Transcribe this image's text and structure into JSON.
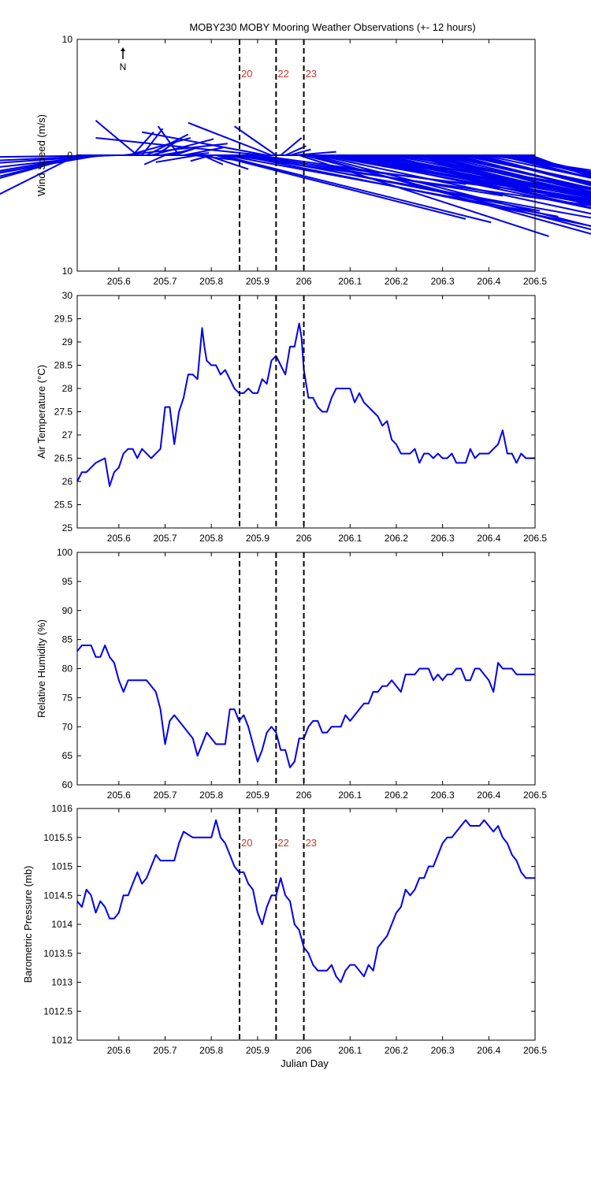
{
  "page_title": "MOBY230 MOBY Mooring Weather Observations (+- 12 hours)",
  "north_label": "N",
  "colors": {
    "series": "#0000ee",
    "marker_line": "#000000",
    "marker_label": "#c0392b",
    "axes": "#000000"
  },
  "markers": {
    "x": [
      205.861,
      205.94,
      206.0
    ],
    "labels": [
      "20",
      "22",
      "23"
    ]
  },
  "chart_data": [
    {
      "type": "line",
      "name": "wind",
      "subtype": "wind-stick",
      "ylabel": "Wind Speed (m/s)",
      "xlabel": "",
      "xlim": [
        205.51,
        206.5
      ],
      "ylim": [
        -10,
        10
      ],
      "ytick_values": [
        -10,
        0,
        10
      ],
      "ytick_labels": [
        "10",
        "0",
        "10"
      ],
      "xticks": [
        205.6,
        205.7,
        205.8,
        205.9,
        206.0,
        206.1,
        206.2,
        206.3,
        206.4,
        206.5
      ],
      "xtick_labels": [
        "205.6",
        "205.7",
        "205.8",
        "205.9",
        "206",
        "206.1",
        "206.2",
        "206.3",
        "206.4",
        "206.5"
      ],
      "show_marker_labels": true,
      "sticks": {
        "x": [
          205.51,
          205.52,
          205.53,
          205.54,
          205.55,
          205.56,
          205.57,
          205.58,
          205.59,
          205.6,
          205.61,
          205.62,
          205.63,
          205.64,
          205.65,
          205.66,
          205.67,
          205.68,
          205.69,
          205.7,
          205.71,
          205.72,
          205.73,
          205.74,
          205.75,
          205.76,
          205.77,
          205.78,
          205.79,
          205.8,
          205.81,
          205.82,
          205.83,
          205.84,
          205.85,
          205.86,
          205.87,
          205.88,
          205.89,
          205.9,
          205.91,
          205.92,
          205.93,
          205.94,
          205.95,
          205.96,
          205.97,
          205.98,
          205.99,
          206.0,
          206.01,
          206.02,
          206.03,
          206.04,
          206.05,
          206.06,
          206.07,
          206.08,
          206.09,
          206.1,
          206.11,
          206.12,
          206.13,
          206.14,
          206.15,
          206.16,
          206.17,
          206.18,
          206.19,
          206.2,
          206.21,
          206.22,
          206.23,
          206.24,
          206.25,
          206.26,
          206.27,
          206.28,
          206.29,
          206.3,
          206.31,
          206.32,
          206.33,
          206.34,
          206.35,
          206.36,
          206.37,
          206.38,
          206.39,
          206.4,
          206.41,
          206.42,
          206.43,
          206.44,
          206.45,
          206.46,
          206.47,
          206.48,
          206.49
        ],
        "u": [
          -0.5,
          -1.0,
          -1.5,
          -1.8,
          -1.5,
          -1.3,
          -1.5,
          -1.2,
          -1.0,
          -0.8,
          0.5,
          0.3,
          0.1,
          -0.2,
          0.1,
          0.2,
          0.3,
          0.1,
          0.1,
          -0.1,
          0.1,
          0.1,
          -0.1,
          0.2,
          0.1,
          0.2,
          -0.2,
          0.1,
          0.2,
          -0.1,
          1.2,
          1.3,
          1.6,
          1.8,
          1.6,
          1.8,
          1.7,
          1.4,
          1.2,
          1.0,
          -0.8,
          -0.6,
          -0.4,
          -0.2,
          0.1,
          0.1,
          0.1,
          0.2,
          1.2,
          1.4,
          1.5,
          1.7,
          1.9,
          2.0,
          2.0,
          1.8,
          1.6,
          1.9,
          2.0,
          2.0,
          1.8,
          1.6,
          1.8,
          2.0,
          2.0,
          1.9,
          1.7,
          1.6,
          1.8,
          2.0,
          2.0,
          1.8,
          1.5,
          1.7,
          1.9,
          2.0,
          1.8,
          1.6,
          1.8,
          2.0,
          1.9,
          1.7,
          1.6,
          1.8,
          2.0,
          1.8,
          1.6,
          1.5,
          1.7,
          1.9,
          1.8,
          1.6,
          1.5,
          1.7,
          1.8,
          1.6,
          1.5,
          1.3,
          1.0
        ],
        "v": [
          -4.5,
          -5.0,
          -6.5,
          -5.5,
          -5.0,
          -4.0,
          -3.0,
          -1.5,
          -0.8,
          -0.2,
          1.0,
          1.5,
          2.0,
          3.0,
          2.3,
          1.8,
          1.4,
          1.2,
          0.3,
          -0.8,
          0.5,
          0.6,
          2.5,
          0.7,
          0.2,
          -0.4,
          -0.6,
          -0.8,
          -1.2,
          -0.5,
          -5.5,
          -5.8,
          -5.3,
          -4.5,
          -3.5,
          -6.5,
          -5.5,
          -4.8,
          -3.5,
          -2.5,
          1.5,
          2.0,
          2.8,
          2.5,
          1.5,
          0.8,
          0.5,
          0.3,
          -7.0,
          -6.5,
          -7.5,
          -7.8,
          -7.3,
          -6.5,
          -6.2,
          -5.5,
          -6.0,
          -6.4,
          -6.8,
          -6.3,
          -5.5,
          -6.5,
          -6.8,
          -6.9,
          -6.3,
          -6.5,
          -7.0,
          -7.0,
          -6.5,
          -6.0,
          -6.5,
          -7.2,
          -7.5,
          -7.4,
          -7.7,
          -7.8,
          -8.0,
          -7.6,
          -7.9,
          -8.0,
          -7.8,
          -7.5,
          -7.2,
          -6.8,
          -7.7,
          -7.4,
          -7.5,
          -7.0,
          -6.5,
          -5.0,
          -6.0,
          -7.0,
          -6.9,
          -7.2,
          -7.3,
          -6.5,
          -7.0,
          -7.3,
          -6.5
        ]
      }
    },
    {
      "type": "line",
      "name": "airtemp",
      "ylabel": "Air Temperature (°C)",
      "xlabel": "",
      "xlim": [
        205.51,
        206.5
      ],
      "ylim": [
        25,
        30
      ],
      "ytick_values": [
        25,
        25.5,
        26,
        26.5,
        27,
        27.5,
        28,
        28.5,
        29,
        29.5,
        30
      ],
      "ytick_labels": [
        "25",
        "25.5",
        "26",
        "26.5",
        "27",
        "27.5",
        "28",
        "28.5",
        "29",
        "29.5",
        "30"
      ],
      "xticks": [
        205.6,
        205.7,
        205.8,
        205.9,
        206.0,
        206.1,
        206.2,
        206.3,
        206.4,
        206.5
      ],
      "xtick_labels": [
        "205.6",
        "205.7",
        "205.8",
        "205.9",
        "206",
        "206.1",
        "206.2",
        "206.3",
        "206.4",
        "206.5"
      ],
      "show_marker_labels": false,
      "x": [
        205.51,
        205.52,
        205.53,
        205.55,
        205.57,
        205.58,
        205.59,
        205.6,
        205.61,
        205.62,
        205.63,
        205.64,
        205.65,
        205.66,
        205.67,
        205.68,
        205.69,
        205.7,
        205.705,
        205.71,
        205.72,
        205.73,
        205.74,
        205.75,
        205.76,
        205.77,
        205.78,
        205.785,
        205.79,
        205.8,
        205.81,
        205.82,
        205.83,
        205.84,
        205.85,
        205.86,
        205.87,
        205.88,
        205.89,
        205.9,
        205.91,
        205.92,
        205.93,
        205.94,
        205.95,
        205.96,
        205.97,
        205.98,
        205.99,
        205.995,
        206.0,
        206.01,
        206.02,
        206.03,
        206.04,
        206.05,
        206.06,
        206.07,
        206.08,
        206.09,
        206.1,
        206.11,
        206.12,
        206.13,
        206.14,
        206.15,
        206.16,
        206.17,
        206.18,
        206.19,
        206.2,
        206.21,
        206.22,
        206.23,
        206.24,
        206.25,
        206.26,
        206.27,
        206.28,
        206.29,
        206.3,
        206.31,
        206.32,
        206.33,
        206.34,
        206.35,
        206.36,
        206.37,
        206.38,
        206.39,
        206.4,
        206.41,
        206.42,
        206.43,
        206.44,
        206.45,
        206.46,
        206.47,
        206.48,
        206.49,
        206.5
      ],
      "y": [
        26.0,
        26.2,
        26.2,
        26.4,
        26.5,
        25.9,
        26.2,
        26.3,
        26.6,
        26.7,
        26.7,
        26.5,
        26.7,
        26.6,
        26.5,
        26.6,
        26.7,
        27.6,
        27.6,
        27.6,
        26.8,
        27.5,
        27.8,
        28.3,
        28.3,
        28.2,
        29.3,
        28.9,
        28.6,
        28.5,
        28.5,
        28.3,
        28.4,
        28.2,
        28.0,
        27.9,
        27.9,
        28.0,
        27.9,
        27.9,
        28.2,
        28.1,
        28.6,
        28.7,
        28.5,
        28.3,
        28.9,
        28.9,
        29.4,
        29.1,
        28.4,
        27.8,
        27.8,
        27.6,
        27.5,
        27.5,
        27.8,
        28.0,
        28.0,
        28.0,
        28.0,
        27.7,
        27.9,
        27.7,
        27.6,
        27.5,
        27.4,
        27.2,
        27.3,
        26.9,
        26.8,
        26.6,
        26.6,
        26.6,
        26.7,
        26.4,
        26.6,
        26.6,
        26.5,
        26.6,
        26.5,
        26.5,
        26.6,
        26.4,
        26.4,
        26.4,
        26.7,
        26.5,
        26.6,
        26.6,
        26.6,
        26.7,
        26.8,
        27.1,
        26.6,
        26.6,
        26.4,
        26.6,
        26.5,
        26.5,
        26.5
      ]
    },
    {
      "type": "line",
      "name": "humidity",
      "ylabel": "Relative Humidity (%)",
      "xlabel": "",
      "xlim": [
        205.51,
        206.5
      ],
      "ylim": [
        60,
        100
      ],
      "ytick_values": [
        60,
        65,
        70,
        75,
        80,
        85,
        90,
        95,
        100
      ],
      "ytick_labels": [
        "60",
        "65",
        "70",
        "75",
        "80",
        "85",
        "90",
        "95",
        "100"
      ],
      "xticks": [
        205.6,
        205.7,
        205.8,
        205.9,
        206.0,
        206.1,
        206.2,
        206.3,
        206.4,
        206.5
      ],
      "xtick_labels": [
        "205.6",
        "205.7",
        "205.8",
        "205.9",
        "206",
        "206.1",
        "206.2",
        "206.3",
        "206.4",
        "206.5"
      ],
      "show_marker_labels": false,
      "x": [
        205.51,
        205.52,
        205.54,
        205.55,
        205.56,
        205.57,
        205.58,
        205.59,
        205.6,
        205.61,
        205.62,
        205.63,
        205.64,
        205.65,
        205.66,
        205.67,
        205.68,
        205.69,
        205.7,
        205.71,
        205.72,
        205.73,
        205.74,
        205.75,
        205.76,
        205.77,
        205.78,
        205.79,
        205.8,
        205.81,
        205.82,
        205.83,
        205.84,
        205.85,
        205.86,
        205.87,
        205.88,
        205.89,
        205.9,
        205.91,
        205.92,
        205.93,
        205.94,
        205.95,
        205.96,
        205.97,
        205.98,
        205.99,
        206.0,
        206.01,
        206.02,
        206.03,
        206.04,
        206.05,
        206.06,
        206.07,
        206.08,
        206.09,
        206.1,
        206.11,
        206.12,
        206.13,
        206.14,
        206.15,
        206.16,
        206.17,
        206.18,
        206.19,
        206.2,
        206.21,
        206.22,
        206.23,
        206.24,
        206.25,
        206.26,
        206.27,
        206.28,
        206.29,
        206.3,
        206.31,
        206.32,
        206.33,
        206.34,
        206.35,
        206.36,
        206.37,
        206.38,
        206.39,
        206.4,
        206.41,
        206.42,
        206.43,
        206.44,
        206.45,
        206.46,
        206.47,
        206.48,
        206.49,
        206.5
      ],
      "y": [
        83,
        84,
        84,
        82,
        82,
        84,
        82,
        81,
        78,
        76,
        78,
        78,
        78,
        78,
        78,
        77,
        76,
        73,
        67,
        71,
        72,
        71,
        70,
        69,
        68,
        65,
        67,
        69,
        68,
        67,
        67,
        67,
        73,
        73,
        71,
        72,
        70,
        67,
        64,
        66,
        69,
        70,
        69,
        66,
        66,
        63,
        64,
        68,
        68,
        70,
        71,
        71,
        69,
        69,
        70,
        70,
        70,
        72,
        71,
        72,
        73,
        74,
        74,
        76,
        76,
        77,
        77,
        78,
        77,
        76,
        79,
        79,
        79,
        80,
        80,
        80,
        78,
        79,
        78,
        79,
        79,
        80,
        80,
        78,
        78,
        80,
        80,
        79,
        78,
        76,
        81,
        80,
        80,
        80,
        79,
        79,
        79,
        79,
        79
      ]
    },
    {
      "type": "line",
      "name": "pressure",
      "ylabel": "Barometric Pressure (mb)",
      "xlabel": "Julian Day",
      "xlim": [
        205.51,
        206.5
      ],
      "ylim": [
        1012,
        1016
      ],
      "ytick_values": [
        1012,
        1012.5,
        1013,
        1013.5,
        1014,
        1014.5,
        1015,
        1015.5,
        1016
      ],
      "ytick_labels": [
        "1012",
        "1012.5",
        "1013",
        "1013.5",
        "1014",
        "1014.5",
        "1015",
        "1015.5",
        "1016"
      ],
      "xticks": [
        205.6,
        205.7,
        205.8,
        205.9,
        206.0,
        206.1,
        206.2,
        206.3,
        206.4,
        206.5
      ],
      "xtick_labels": [
        "205.6",
        "205.7",
        "205.8",
        "205.9",
        "206",
        "206.1",
        "206.2",
        "206.3",
        "206.4",
        "206.5"
      ],
      "show_marker_labels": true,
      "x": [
        205.51,
        205.52,
        205.53,
        205.54,
        205.55,
        205.56,
        205.57,
        205.58,
        205.59,
        205.6,
        205.61,
        205.62,
        205.63,
        205.64,
        205.65,
        205.66,
        205.67,
        205.68,
        205.69,
        205.7,
        205.71,
        205.72,
        205.73,
        205.74,
        205.75,
        205.76,
        205.77,
        205.78,
        205.79,
        205.8,
        205.81,
        205.82,
        205.83,
        205.84,
        205.85,
        205.86,
        205.87,
        205.88,
        205.89,
        205.9,
        205.91,
        205.92,
        205.93,
        205.94,
        205.95,
        205.96,
        205.97,
        205.98,
        205.99,
        206.0,
        206.01,
        206.02,
        206.03,
        206.04,
        206.05,
        206.06,
        206.07,
        206.08,
        206.09,
        206.1,
        206.11,
        206.12,
        206.13,
        206.14,
        206.15,
        206.16,
        206.17,
        206.18,
        206.19,
        206.2,
        206.21,
        206.22,
        206.23,
        206.24,
        206.25,
        206.26,
        206.27,
        206.28,
        206.29,
        206.3,
        206.31,
        206.32,
        206.33,
        206.34,
        206.35,
        206.36,
        206.37,
        206.38,
        206.39,
        206.4,
        206.41,
        206.42,
        206.43,
        206.44,
        206.45,
        206.46,
        206.47,
        206.48,
        206.49,
        206.5
      ],
      "y": [
        1014.4,
        1014.3,
        1014.6,
        1014.5,
        1014.2,
        1014.4,
        1014.3,
        1014.1,
        1014.1,
        1014.2,
        1014.5,
        1014.5,
        1014.7,
        1014.9,
        1014.7,
        1014.8,
        1015.0,
        1015.2,
        1015.1,
        1015.1,
        1015.1,
        1015.1,
        1015.4,
        1015.6,
        1015.55,
        1015.5,
        1015.5,
        1015.5,
        1015.5,
        1015.5,
        1015.8,
        1015.5,
        1015.4,
        1015.2,
        1015.0,
        1014.9,
        1014.9,
        1014.7,
        1014.6,
        1014.2,
        1014.0,
        1014.3,
        1014.5,
        1014.5,
        1014.8,
        1014.5,
        1014.4,
        1014.0,
        1013.9,
        1013.6,
        1013.5,
        1013.3,
        1013.2,
        1013.2,
        1013.2,
        1013.3,
        1013.1,
        1013.0,
        1013.2,
        1013.3,
        1013.3,
        1013.2,
        1013.1,
        1013.3,
        1013.2,
        1013.6,
        1013.7,
        1013.8,
        1014.0,
        1014.2,
        1014.3,
        1014.6,
        1014.5,
        1014.6,
        1014.8,
        1014.8,
        1015.0,
        1015.0,
        1015.2,
        1015.4,
        1015.5,
        1015.5,
        1015.6,
        1015.7,
        1015.8,
        1015.7,
        1015.7,
        1015.7,
        1015.8,
        1015.7,
        1015.6,
        1015.7,
        1015.5,
        1015.4,
        1015.2,
        1015.1,
        1014.9,
        1014.8,
        1014.8,
        1014.8
      ]
    }
  ]
}
